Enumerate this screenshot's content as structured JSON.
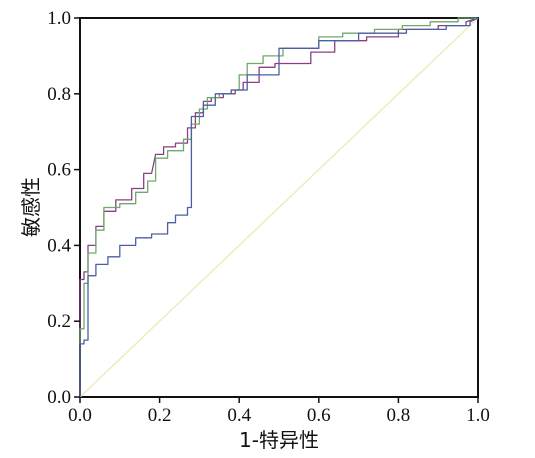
{
  "chart_data": {
    "type": "line",
    "title": "",
    "xlabel": "1-特异性",
    "ylabel": "敏感性",
    "xlim": [
      0,
      1
    ],
    "ylim": [
      0,
      1
    ],
    "x_ticks": [
      "0.0",
      "0.2",
      "0.4",
      "0.6",
      "0.8",
      "1.0"
    ],
    "y_ticks": [
      "0.0",
      "0.2",
      "0.4",
      "0.6",
      "0.8",
      "1.0"
    ],
    "grid": false,
    "legend": "none",
    "reference_line": {
      "x": [
        0,
        1
      ],
      "y": [
        0,
        1
      ],
      "color": "#e6edb4"
    },
    "series": [
      {
        "color": "#8a3f84",
        "x": [
          0,
          0,
          0.01,
          0.01,
          0.02,
          0.02,
          0.04,
          0.04,
          0.06,
          0.06,
          0.09,
          0.09,
          0.13,
          0.13,
          0.16,
          0.16,
          0.18,
          0.19,
          0.21,
          0.21,
          0.24,
          0.24,
          0.27,
          0.27,
          0.29,
          0.29,
          0.31,
          0.31,
          0.33,
          0.33,
          0.36,
          0.36,
          0.39,
          0.39,
          0.41,
          0.41,
          0.45,
          0.45,
          0.49,
          0.49,
          0.58,
          0.58,
          0.64,
          0.64,
          0.72,
          0.72,
          0.8,
          0.8,
          0.9,
          0.9,
          0.97,
          0.97,
          1
        ],
        "y": [
          0,
          0.31,
          0.31,
          0.33,
          0.33,
          0.4,
          0.4,
          0.45,
          0.45,
          0.49,
          0.49,
          0.52,
          0.52,
          0.55,
          0.55,
          0.59,
          0.59,
          0.64,
          0.64,
          0.66,
          0.66,
          0.67,
          0.67,
          0.71,
          0.71,
          0.75,
          0.75,
          0.78,
          0.78,
          0.79,
          0.79,
          0.8,
          0.8,
          0.81,
          0.81,
          0.83,
          0.83,
          0.87,
          0.87,
          0.88,
          0.88,
          0.91,
          0.91,
          0.94,
          0.94,
          0.95,
          0.95,
          0.97,
          0.97,
          0.98,
          0.98,
          0.99,
          1
        ]
      },
      {
        "color": "#6fa96a",
        "x": [
          0,
          0,
          0.01,
          0.01,
          0.02,
          0.02,
          0.04,
          0.04,
          0.06,
          0.06,
          0.1,
          0.1,
          0.14,
          0.14,
          0.17,
          0.17,
          0.19,
          0.19,
          0.22,
          0.22,
          0.26,
          0.26,
          0.28,
          0.28,
          0.3,
          0.3,
          0.32,
          0.32,
          0.35,
          0.35,
          0.38,
          0.38,
          0.4,
          0.4,
          0.42,
          0.42,
          0.46,
          0.46,
          0.51,
          0.51,
          0.6,
          0.6,
          0.66,
          0.66,
          0.74,
          0.74,
          0.81,
          0.81,
          0.88,
          0.88,
          0.95,
          0.95,
          1
        ],
        "y": [
          0,
          0.18,
          0.18,
          0.3,
          0.3,
          0.38,
          0.38,
          0.44,
          0.44,
          0.5,
          0.5,
          0.51,
          0.51,
          0.54,
          0.54,
          0.57,
          0.57,
          0.63,
          0.63,
          0.65,
          0.65,
          0.68,
          0.68,
          0.72,
          0.72,
          0.76,
          0.76,
          0.79,
          0.79,
          0.8,
          0.8,
          0.81,
          0.81,
          0.85,
          0.85,
          0.88,
          0.88,
          0.9,
          0.9,
          0.92,
          0.92,
          0.95,
          0.95,
          0.96,
          0.96,
          0.97,
          0.97,
          0.98,
          0.98,
          0.99,
          0.99,
          1,
          1
        ]
      },
      {
        "color": "#4b5fa5",
        "x": [
          0,
          0,
          0.01,
          0.01,
          0.02,
          0.02,
          0.04,
          0.04,
          0.07,
          0.07,
          0.1,
          0.1,
          0.14,
          0.14,
          0.18,
          0.18,
          0.22,
          0.22,
          0.24,
          0.24,
          0.27,
          0.27,
          0.28,
          0.28,
          0.28,
          0.31,
          0.31,
          0.34,
          0.34,
          0.38,
          0.38,
          0.42,
          0.42,
          0.5,
          0.5,
          0.6,
          0.6,
          0.7,
          0.7,
          0.82,
          0.82,
          0.92,
          0.92,
          0.98,
          0.98,
          1
        ],
        "y": [
          0,
          0.14,
          0.14,
          0.15,
          0.15,
          0.32,
          0.32,
          0.35,
          0.35,
          0.37,
          0.37,
          0.4,
          0.4,
          0.42,
          0.42,
          0.43,
          0.43,
          0.46,
          0.46,
          0.48,
          0.48,
          0.5,
          0.5,
          0.66,
          0.74,
          0.74,
          0.77,
          0.77,
          0.8,
          0.8,
          0.81,
          0.81,
          0.85,
          0.85,
          0.92,
          0.92,
          0.94,
          0.94,
          0.96,
          0.96,
          0.97,
          0.97,
          0.98,
          0.98,
          0.99,
          1
        ]
      }
    ]
  }
}
